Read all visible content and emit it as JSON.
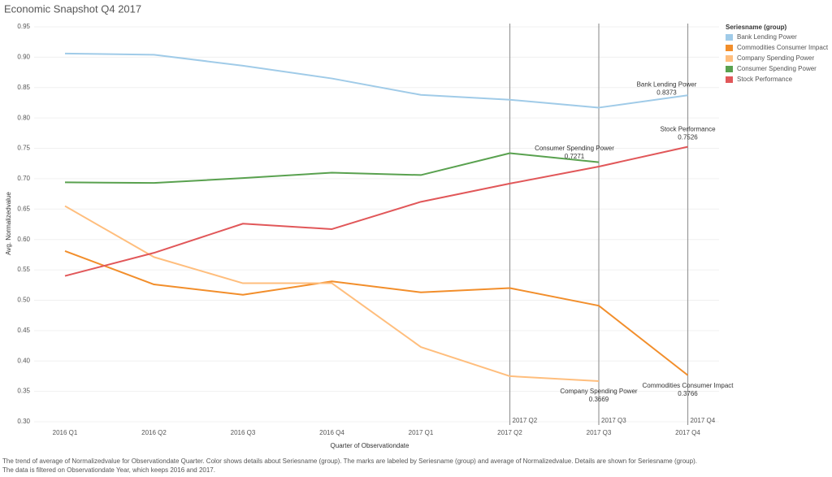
{
  "chart_data": {
    "type": "line",
    "title": "Economic Snapshot Q4 2017",
    "x_label": "Quarter of Observationdate",
    "y_label": "Avg. Normalizedvalue",
    "legend_title": "Seriesname (group)",
    "legend": "right",
    "categories": [
      "2016 Q1",
      "2016 Q2",
      "2016 Q3",
      "2016 Q4",
      "2017 Q1",
      "2017 Q2",
      "2017 Q3",
      "2017 Q4"
    ],
    "reference_lines": [
      "2017 Q2",
      "2017 Q3",
      "2017 Q4"
    ],
    "series": [
      {
        "name": "Bank Lending Power",
        "color": "#a0cbe8",
        "values": [
          0.906,
          0.904,
          0.886,
          0.865,
          0.838,
          0.83,
          0.817,
          0.8373
        ]
      },
      {
        "name": "Commodities Consumer Impact",
        "color": "#f28e2b",
        "values": [
          0.581,
          0.526,
          0.509,
          0.531,
          0.513,
          0.52,
          0.491,
          0.3766
        ]
      },
      {
        "name": "Company Spending Power",
        "color": "#ffbe7d",
        "values": [
          0.655,
          0.571,
          0.528,
          0.528,
          0.423,
          0.375,
          0.3669,
          null
        ]
      },
      {
        "name": "Consumer Spending Power",
        "color": "#59a14f",
        "values": [
          0.694,
          0.693,
          0.701,
          0.71,
          0.706,
          0.742,
          0.7271,
          null
        ]
      },
      {
        "name": "Stock Performance",
        "color": "#e15759",
        "values": [
          0.54,
          0.578,
          0.626,
          0.617,
          0.662,
          0.692,
          0.72,
          0.7526
        ]
      }
    ],
    "ylim": [
      0.3,
      0.95
    ],
    "yticks": [
      {
        "value": 0.3,
        "label": "0.30"
      },
      0.35,
      {
        "value": 0.4,
        "label": "0.40"
      },
      0.45,
      {
        "value": 0.5,
        "label": "0.50"
      },
      0.55,
      {
        "value": 0.6,
        "label": "0.60"
      },
      0.65,
      {
        "value": 0.7,
        "label": "0.70"
      },
      0.75,
      {
        "value": 0.8,
        "label": "0.80"
      },
      0.85,
      {
        "value": 0.9,
        "label": "0.90"
      },
      0.95
    ],
    "grid": true,
    "caption": [
      "The trend of average of Normalizedvalue for Observationdate Quarter.  Color shows details about Seriesname (group).  The marks are labeled by Seriesname (group) and average of Normalizedvalue.  Details are shown for Seriesname (group).",
      "The data is filtered on Observationdate Year, which keeps 2016 and 2017."
    ]
  }
}
